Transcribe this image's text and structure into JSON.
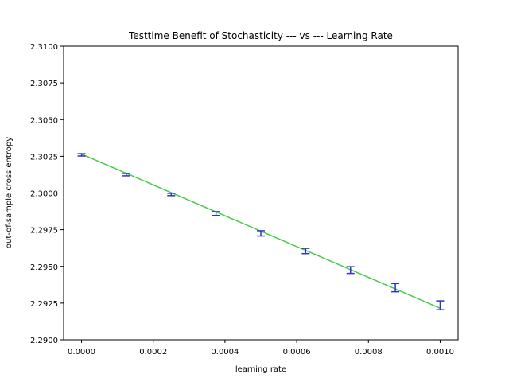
{
  "chart_data": {
    "type": "line",
    "title": "Testtime Benefit of Stochasticity --- vs --- Learning Rate",
    "xlabel": "learning rate",
    "ylabel": "out-of-sample cross entropy",
    "xlim": [
      -5e-05,
      0.00105
    ],
    "ylim": [
      2.29,
      2.31
    ],
    "xticks": [
      0.0,
      0.0002,
      0.0004,
      0.0006,
      0.0008,
      0.001
    ],
    "xtick_labels": [
      "0.0000",
      "0.0002",
      "0.0004",
      "0.0006",
      "0.0008",
      "0.0010"
    ],
    "yticks": [
      2.29,
      2.2925,
      2.295,
      2.2975,
      2.3,
      2.3025,
      2.305,
      2.3075,
      2.31
    ],
    "ytick_labels": [
      "2.2900",
      "2.2925",
      "2.2950",
      "2.2975",
      "2.3000",
      "2.3025",
      "2.3050",
      "2.3075",
      "2.3100"
    ],
    "grid": false,
    "fit_line": {
      "color": "#44cc44",
      "x": [
        0.0,
        0.001
      ],
      "y": [
        2.30265,
        2.29215
      ]
    },
    "series": [
      {
        "color": "#3333bb",
        "x": [
          0.0,
          0.000125,
          0.00025,
          0.000375,
          0.0005,
          0.000625,
          0.00075,
          0.000875,
          0.001
        ],
        "y": [
          2.3026,
          2.30125,
          2.2999,
          2.2986,
          2.29725,
          2.29605,
          2.29475,
          2.29355,
          2.29235
        ],
        "err": [
          8e-05,
          8e-05,
          8e-05,
          0.00013,
          0.00018,
          0.00018,
          0.00023,
          0.00028,
          0.0003
        ]
      }
    ]
  }
}
